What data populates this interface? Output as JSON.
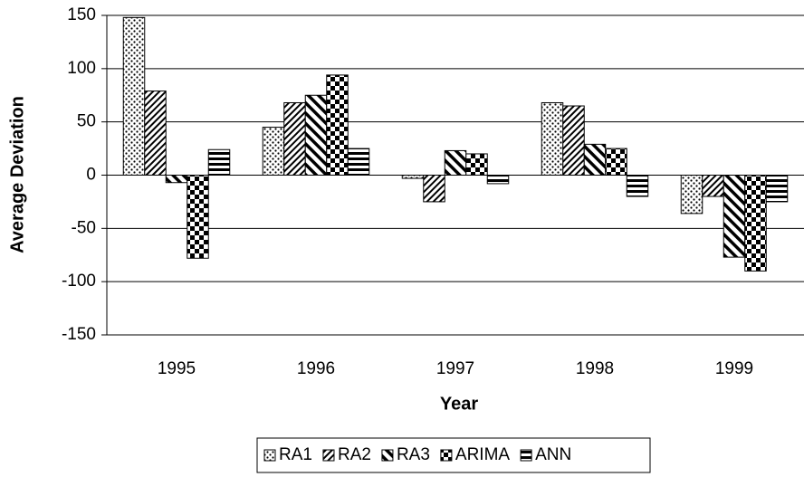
{
  "chart_data": {
    "type": "bar",
    "x_label": "Year",
    "y_label": "Average Deviation",
    "categories": [
      "1995",
      "1996",
      "1997",
      "1998",
      "1999"
    ],
    "series": [
      {
        "name": "RA1",
        "pattern": "dots",
        "color": "#000000",
        "values": [
          148,
          45,
          -3,
          68,
          -36
        ]
      },
      {
        "name": "RA2",
        "pattern": "back-diagonal",
        "color": "#000000",
        "values": [
          79,
          68,
          -25,
          65,
          -20
        ]
      },
      {
        "name": "RA3",
        "pattern": "forward-diagonal",
        "color": "#000000",
        "values": [
          -7,
          75,
          23,
          29,
          -77
        ]
      },
      {
        "name": "ARIMA",
        "pattern": "checker",
        "color": "#000000",
        "values": [
          -78,
          94,
          20,
          25,
          -90
        ]
      },
      {
        "name": "ANN",
        "pattern": "horizontal",
        "color": "#000000",
        "values": [
          24,
          25,
          -8,
          -20,
          -25
        ]
      }
    ],
    "ylim": [
      -150,
      150
    ],
    "yticks": [
      -150,
      -100,
      -50,
      0,
      50,
      100,
      150
    ],
    "grid": true,
    "legend": "bottom"
  }
}
